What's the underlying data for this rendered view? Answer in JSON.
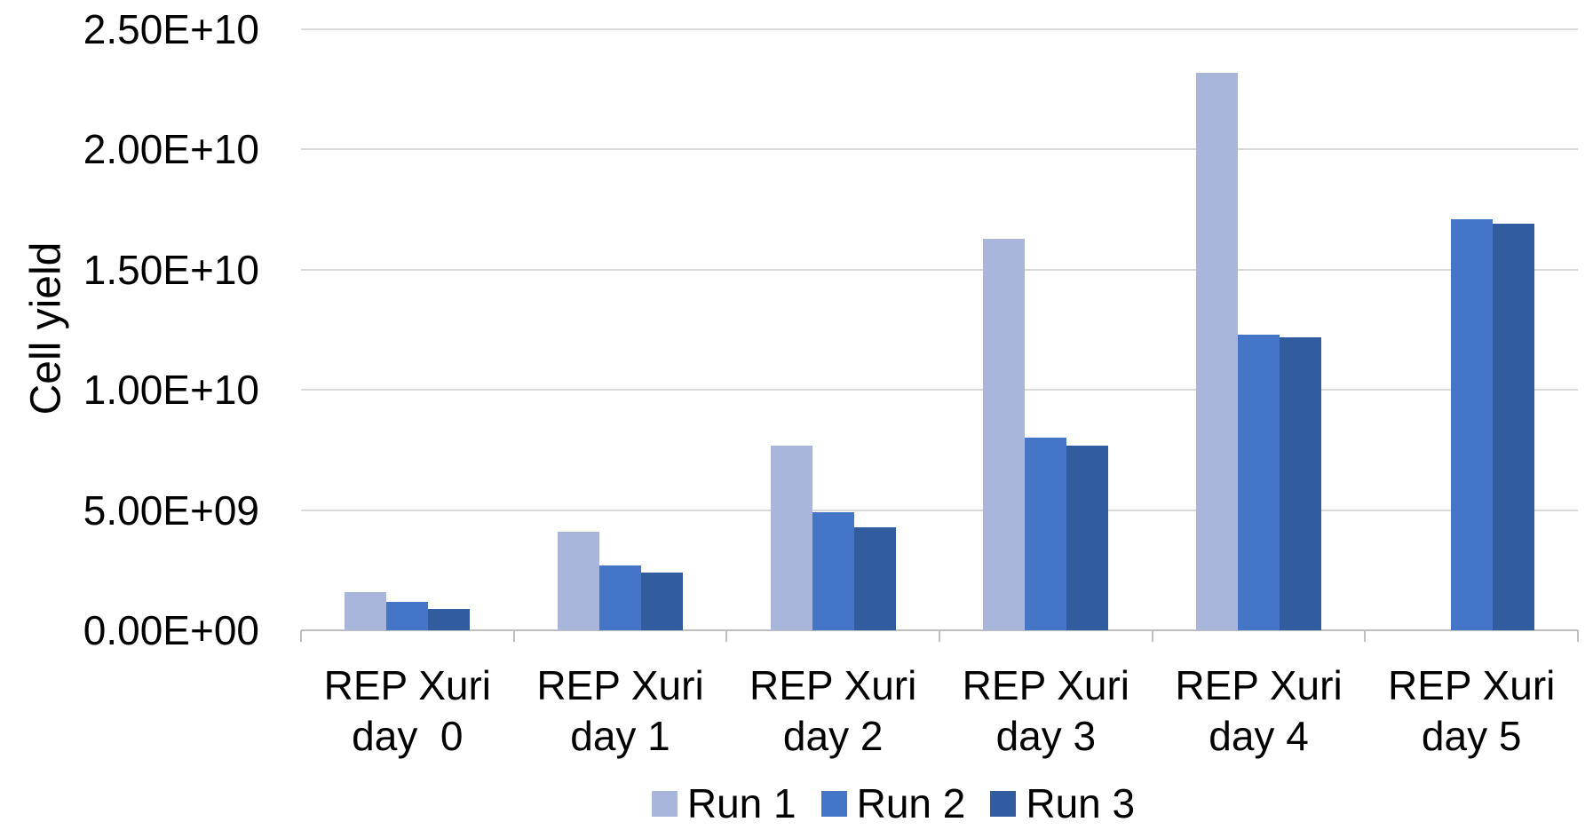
{
  "chart_data": {
    "type": "bar",
    "title": "",
    "xlabel": "",
    "ylabel": "Cell yield",
    "ylim": [
      0,
      25000000000.0
    ],
    "grid": "horizontal-only",
    "legend_position": "bottom-center",
    "background_color": "#ffffff",
    "gridline_color": "#d9d9d9",
    "axis_line_color": "#bfbfbf",
    "text_color": "#000000",
    "y_ticks": [
      {
        "label": "0.00E+00",
        "value": 0
      },
      {
        "label": "5.00E+09",
        "value": 5000000000.0
      },
      {
        "label": "1.00E+10",
        "value": 10000000000.0
      },
      {
        "label": "1.50E+10",
        "value": 15000000000.0
      },
      {
        "label": "2.00E+10",
        "value": 20000000000.0
      },
      {
        "label": "2.50E+10",
        "value": 25000000000.0
      }
    ],
    "categories": [
      [
        "REP Xuri",
        "day  0"
      ],
      [
        "REP Xuri",
        "day 1"
      ],
      [
        "REP Xuri",
        "day 2"
      ],
      [
        "REP Xuri",
        "day 3"
      ],
      [
        "REP Xuri",
        "day 4"
      ],
      [
        "REP Xuri",
        "day 5"
      ]
    ],
    "series": [
      {
        "name": "Run 1",
        "color": "#aab5dc",
        "values": [
          1600000000.0,
          4100000000.0,
          7700000000.0,
          16300000000.0,
          23200000000.0,
          0
        ]
      },
      {
        "name": "Run 2",
        "color": "#4575c6",
        "values": [
          1200000000.0,
          2700000000.0,
          4900000000.0,
          8000000000.0,
          12300000000.0,
          17100000000.0
        ]
      },
      {
        "name": "Run 3",
        "color": "#315c9f",
        "values": [
          900000000.0,
          2400000000.0,
          4300000000.0,
          7700000000.0,
          12200000000.0,
          16900000000.0
        ]
      }
    ]
  }
}
